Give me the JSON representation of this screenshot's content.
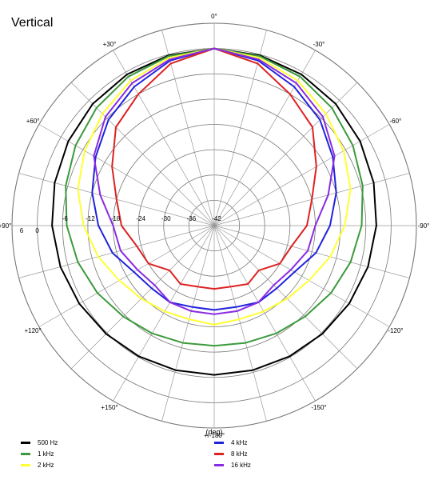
{
  "chart_data": {
    "type": "polar-line",
    "title": "Vertical",
    "xlabel": "(deg)",
    "radial_unit": "dB",
    "radial_range": [
      -42,
      0
    ],
    "radial_ticks": [
      -6,
      -12,
      -18,
      -24,
      -30,
      -36,
      -42
    ],
    "right_origin_label": "0",
    "left_outer_label": "6",
    "angle_labels": [
      {
        "angle": 0,
        "label": "0°"
      },
      {
        "angle": -30,
        "label": "-30°"
      },
      {
        "angle": -60,
        "label": "-60°"
      },
      {
        "angle": -90,
        "label": "-90°"
      },
      {
        "angle": -120,
        "label": "-120°"
      },
      {
        "angle": -150,
        "label": "-150°"
      },
      {
        "angle": 180,
        "label": "+/-180°"
      },
      {
        "angle": 150,
        "label": "+150°"
      },
      {
        "angle": 120,
        "label": "+120°"
      },
      {
        "angle": 90,
        "label": "+90°"
      },
      {
        "angle": 60,
        "label": "+60°"
      },
      {
        "angle": 30,
        "label": "+30°"
      }
    ],
    "angles_deg": [
      0,
      15,
      30,
      45,
      60,
      75,
      90,
      105,
      120,
      135,
      150,
      165,
      180
    ],
    "series": [
      {
        "name": "500 Hz",
        "color": "#000000",
        "db": [
          0,
          -0.2,
          -0.6,
          -1.2,
          -2,
          -2.8,
          -3.5,
          -4.2,
          -5,
          -5.7,
          -6.2,
          -6.5,
          -6.6
        ]
      },
      {
        "name": "1 kHz",
        "color": "#3c9a3c",
        "db": [
          0,
          -0.4,
          -1.2,
          -2.5,
          -4,
          -5.5,
          -7,
          -8.5,
          -10,
          -11.5,
          -12.5,
          -13.2,
          -13.5
        ]
      },
      {
        "name": "2 kHz",
        "color": "#ffff33",
        "db": [
          0,
          -0.8,
          -2.3,
          -4.5,
          -6.5,
          -8.5,
          -11,
          -13.5,
          -16,
          -17.5,
          -18.5,
          -19,
          -18.5
        ]
      },
      {
        "name": "4 kHz",
        "color": "#2222dd",
        "db": [
          0,
          -1.5,
          -4,
          -6.5,
          -9.5,
          -12,
          -14.5,
          -17,
          -20,
          -21,
          -21,
          -22,
          -22
        ]
      },
      {
        "name": "8 kHz",
        "color": "#dd2222",
        "db": [
          0,
          -2.2,
          -6,
          -9,
          -14,
          -18,
          -20,
          -23,
          -24,
          -27,
          -26,
          -27,
          -27
        ]
      },
      {
        "name": "16 kHz",
        "color": "#8a2be2",
        "db": [
          0,
          -1.2,
          -3,
          -5.5,
          -9,
          -14,
          -18,
          -19,
          -21,
          -22,
          -21,
          -21,
          -21
        ]
      }
    ],
    "legend_position": "bottom",
    "grid": true
  }
}
